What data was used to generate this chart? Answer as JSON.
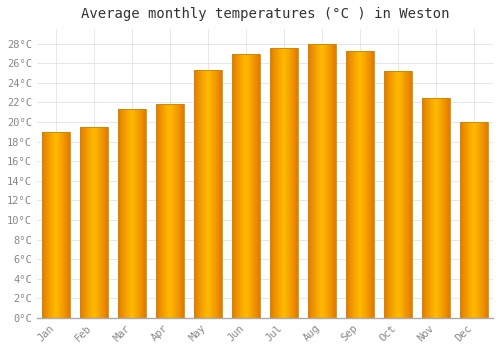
{
  "title": "Average monthly temperatures (°C ) in Weston",
  "months": [
    "Jan",
    "Feb",
    "Mar",
    "Apr",
    "May",
    "Jun",
    "Jul",
    "Aug",
    "Sep",
    "Oct",
    "Nov",
    "Dec"
  ],
  "values": [
    19,
    19.5,
    21.3,
    21.8,
    25.3,
    27.0,
    27.6,
    28.0,
    27.3,
    25.2,
    22.5,
    20.0
  ],
  "bar_color_center": "#FFB700",
  "bar_color_edge": "#E08000",
  "bar_edge_color": "#B8860B",
  "ylim": [
    0,
    29.5
  ],
  "yticks": [
    0,
    2,
    4,
    6,
    8,
    10,
    12,
    14,
    16,
    18,
    20,
    22,
    24,
    26,
    28
  ],
  "background_color": "#FFFFFF",
  "grid_color": "#DDDDDD",
  "title_fontsize": 10,
  "tick_fontsize": 7.5,
  "font_family": "monospace"
}
